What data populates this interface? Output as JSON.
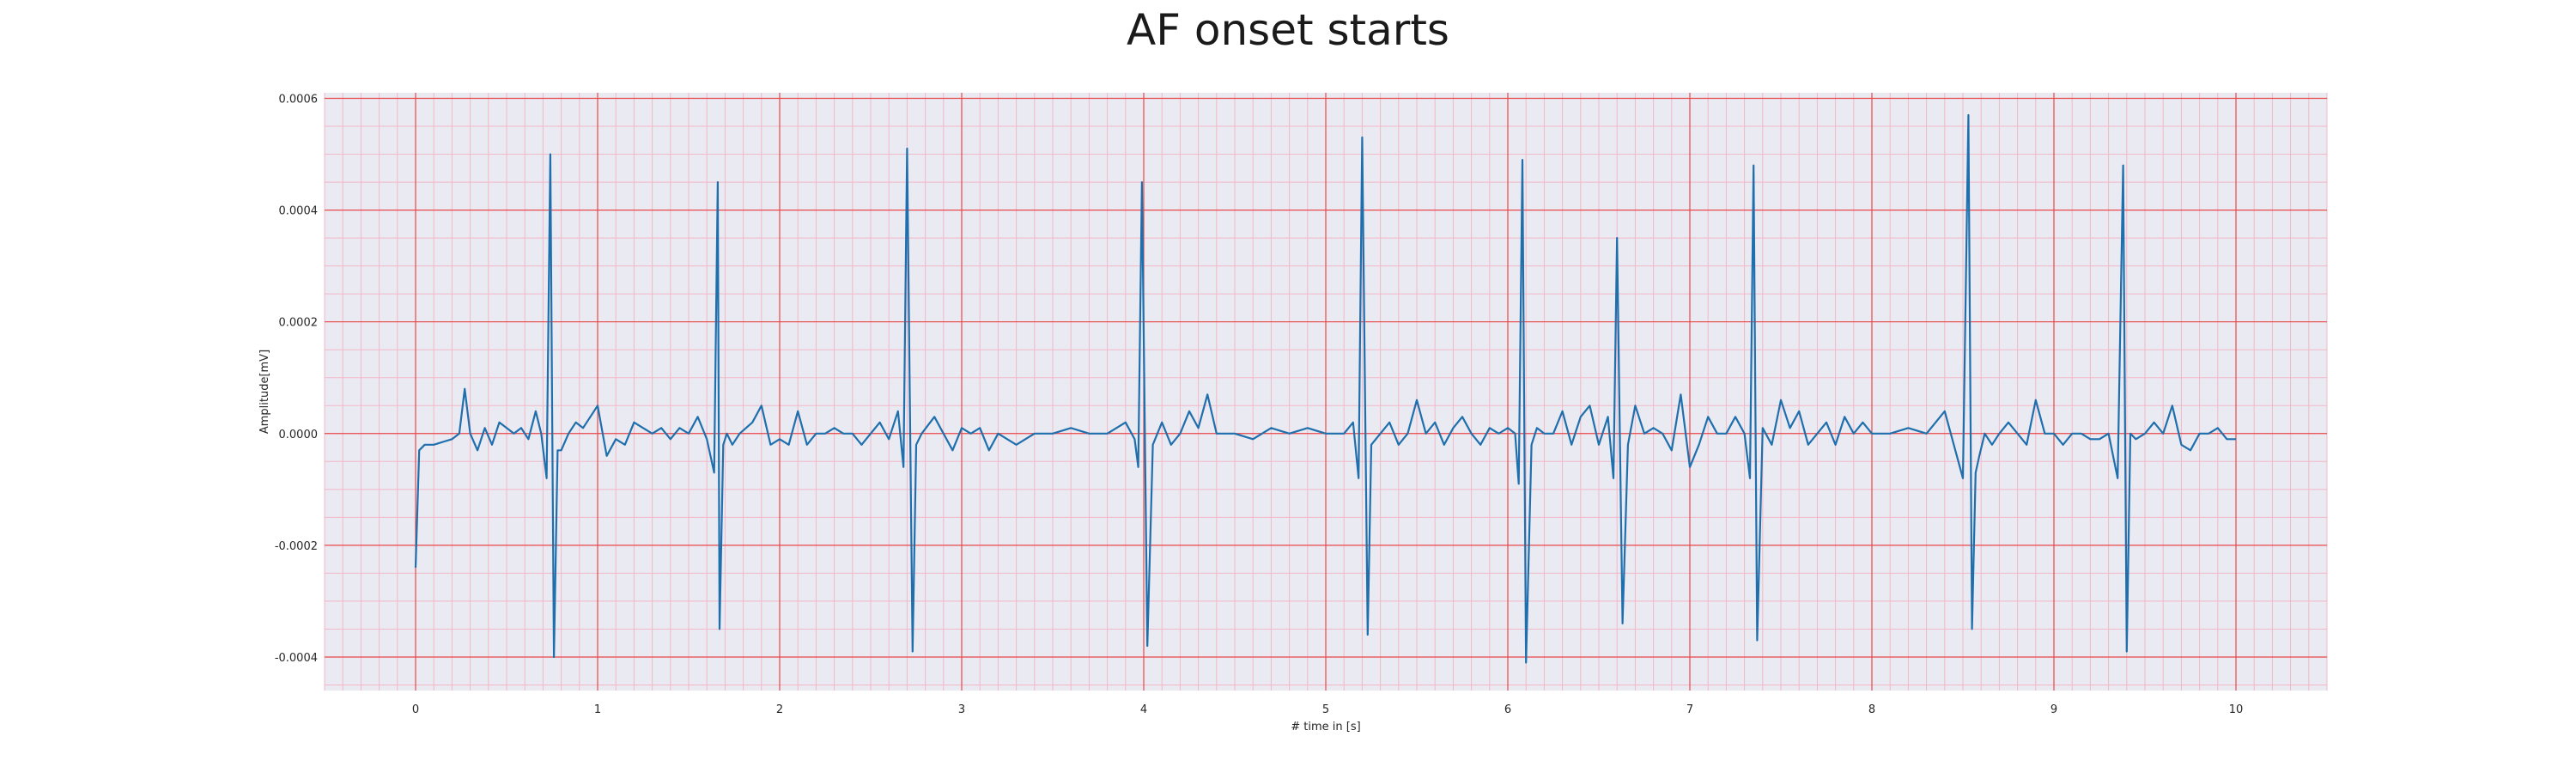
{
  "chart_data": {
    "type": "line",
    "title": "AF onset starts",
    "xlabel": "# time in [s]",
    "ylabel": "Amplitude[mV]",
    "xlim": [
      -0.5,
      10.5
    ],
    "ylim": [
      -0.00046,
      0.00061
    ],
    "x_ticks": [
      0,
      1,
      2,
      3,
      4,
      5,
      6,
      7,
      8,
      9,
      10
    ],
    "x_tick_labels": [
      "0",
      "1",
      "2",
      "3",
      "4",
      "5",
      "6",
      "7",
      "8",
      "9",
      "10"
    ],
    "y_ticks": [
      -0.0004,
      -0.0002,
      0.0,
      0.0002,
      0.0004,
      0.0006
    ],
    "y_tick_labels": [
      "-0.0004",
      "-0.0002",
      "0.0000",
      "0.0002",
      "0.0004",
      "0.0006"
    ],
    "grid": true,
    "minor_grid": true,
    "colors": {
      "series": "#1f6fad",
      "plot_background": "#eaeaf2",
      "major_grid": "#e8484a",
      "minor_grid": "#f2b8c6"
    },
    "series": [
      {
        "x": [
          0.0,
          0.02,
          0.05,
          0.1,
          0.15,
          0.2,
          0.24,
          0.27,
          0.3,
          0.34,
          0.38,
          0.42,
          0.46,
          0.5,
          0.54,
          0.58,
          0.62,
          0.66,
          0.69,
          0.72,
          0.74,
          0.76,
          0.78,
          0.8,
          0.84,
          0.88,
          0.92,
          0.96,
          1.0,
          1.05,
          1.1,
          1.15,
          1.2,
          1.25,
          1.3,
          1.35,
          1.4,
          1.45,
          1.5,
          1.55,
          1.6,
          1.64,
          1.66,
          1.67,
          1.69,
          1.71,
          1.74,
          1.78,
          1.85,
          1.9,
          1.95,
          2.0,
          2.05,
          2.1,
          2.15,
          2.2,
          2.25,
          2.3,
          2.35,
          2.4,
          2.45,
          2.5,
          2.55,
          2.6,
          2.65,
          2.68,
          2.7,
          2.73,
          2.75,
          2.78,
          2.85,
          2.9,
          2.95,
          3.0,
          3.05,
          3.1,
          3.15,
          3.2,
          3.3,
          3.4,
          3.5,
          3.6,
          3.7,
          3.8,
          3.9,
          3.95,
          3.97,
          3.99,
          4.02,
          4.05,
          4.1,
          4.15,
          4.2,
          4.25,
          4.3,
          4.35,
          4.4,
          4.5,
          4.6,
          4.7,
          4.8,
          4.9,
          5.0,
          5.1,
          5.15,
          5.18,
          5.2,
          5.23,
          5.25,
          5.3,
          5.35,
          5.4,
          5.45,
          5.5,
          5.55,
          5.6,
          5.65,
          5.7,
          5.75,
          5.8,
          5.85,
          5.9,
          5.95,
          6.0,
          6.04,
          6.06,
          6.08,
          6.1,
          6.13,
          6.16,
          6.2,
          6.25,
          6.3,
          6.35,
          6.4,
          6.45,
          6.5,
          6.55,
          6.58,
          6.6,
          6.63,
          6.66,
          6.7,
          6.75,
          6.8,
          6.85,
          6.9,
          6.95,
          7.0,
          7.05,
          7.1,
          7.15,
          7.2,
          7.25,
          7.3,
          7.33,
          7.35,
          7.37,
          7.4,
          7.45,
          7.5,
          7.55,
          7.6,
          7.65,
          7.7,
          7.75,
          7.8,
          7.85,
          7.9,
          7.95,
          8.0,
          8.1,
          8.2,
          8.3,
          8.4,
          8.5,
          8.53,
          8.55,
          8.57,
          8.59,
          8.62,
          8.66,
          8.7,
          8.75,
          8.8,
          8.85,
          8.9,
          8.95,
          9.0,
          9.05,
          9.1,
          9.15,
          9.2,
          9.25,
          9.3,
          9.35,
          9.38,
          9.4,
          9.42,
          9.45,
          9.5,
          9.55,
          9.6,
          9.65,
          9.7,
          9.75,
          9.8,
          9.85,
          9.9,
          9.95,
          10.0
        ],
        "y": [
          -0.00024,
          -3e-05,
          -2e-05,
          -2e-05,
          -1.5e-05,
          -1e-05,
          0.0,
          8e-05,
          0.0,
          -3e-05,
          1e-05,
          -2e-05,
          2e-05,
          1e-05,
          0.0,
          1e-05,
          -1e-05,
          4e-05,
          0.0,
          -8e-05,
          0.0005,
          -0.0004,
          -3e-05,
          -3e-05,
          0.0,
          2e-05,
          1e-05,
          3e-05,
          5e-05,
          -4e-05,
          -1e-05,
          -2e-05,
          2e-05,
          1e-05,
          0.0,
          1e-05,
          -1e-05,
          1e-05,
          0.0,
          3e-05,
          -1e-05,
          -7e-05,
          0.00045,
          -0.00035,
          -2e-05,
          0.0,
          -2e-05,
          0.0,
          2e-05,
          5e-05,
          -2e-05,
          -1e-05,
          -2e-05,
          4e-05,
          -2e-05,
          0.0,
          0.0,
          1e-05,
          0.0,
          0.0,
          -2e-05,
          0.0,
          2e-05,
          -1e-05,
          4e-05,
          -6e-05,
          0.00051,
          -0.00039,
          -2e-05,
          0.0,
          3e-05,
          0.0,
          -3e-05,
          1e-05,
          0.0,
          1e-05,
          -3e-05,
          0.0,
          -2e-05,
          0.0,
          0.0,
          1e-05,
          0.0,
          0.0,
          2e-05,
          -1e-05,
          -6e-05,
          0.00045,
          -0.00038,
          -2e-05,
          2e-05,
          -2e-05,
          0.0,
          4e-05,
          1e-05,
          7e-05,
          0.0,
          0.0,
          -1e-05,
          1e-05,
          0.0,
          1e-05,
          0.0,
          0.0,
          2e-05,
          -8e-05,
          0.00053,
          -0.00036,
          -2e-05,
          0.0,
          2e-05,
          -2e-05,
          0.0,
          6e-05,
          0.0,
          2e-05,
          -2e-05,
          1e-05,
          3e-05,
          0.0,
          -2e-05,
          1e-05,
          0.0,
          1e-05,
          0.0,
          -9e-05,
          0.00049,
          -0.00041,
          -2e-05,
          1e-05,
          0.0,
          0.0,
          4e-05,
          -2e-05,
          3e-05,
          5e-05,
          -2e-05,
          3e-05,
          -8e-05,
          0.00035,
          -0.00034,
          -2e-05,
          5e-05,
          0.0,
          1e-05,
          0.0,
          -3e-05,
          7e-05,
          -6e-05,
          -2e-05,
          3e-05,
          0.0,
          0.0,
          3e-05,
          0.0,
          -8e-05,
          0.00048,
          -0.00037,
          1e-05,
          -2e-05,
          6e-05,
          1e-05,
          4e-05,
          -2e-05,
          0.0,
          2e-05,
          -2e-05,
          3e-05,
          0.0,
          2e-05,
          0.0,
          0.0,
          1e-05,
          0.0,
          4e-05,
          -8e-05,
          0.00057,
          -0.00035,
          -7e-05,
          -4e-05,
          0.0,
          -2e-05,
          0.0,
          2e-05,
          0.0,
          -2e-05,
          6e-05,
          0.0,
          0.0,
          -2e-05,
          0.0,
          0.0,
          -1e-05,
          -1e-05,
          0.0,
          -8e-05,
          0.00048,
          -0.00039,
          0.0,
          -1e-05,
          0.0,
          2e-05,
          0.0,
          5e-05,
          -2e-05,
          -3e-05,
          0.0,
          0.0,
          1e-05,
          -1e-05,
          -1e-05
        ]
      }
    ]
  }
}
